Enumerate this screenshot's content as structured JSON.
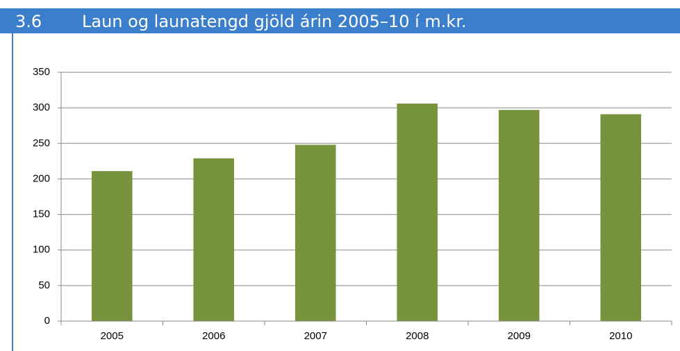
{
  "chart_data": {
    "type": "bar",
    "figure_number": "3.6",
    "title": "Laun og launatengd gjöld árin 2005–10 í m.kr.",
    "categories": [
      "2005",
      "2006",
      "2007",
      "2008",
      "2009",
      "2010"
    ],
    "values": [
      211,
      229,
      248,
      306,
      297,
      291
    ],
    "color": "#77933c",
    "ylim": [
      0,
      350
    ],
    "yticks": [
      0,
      50,
      100,
      150,
      200,
      250,
      300,
      350
    ],
    "grid": true
  }
}
